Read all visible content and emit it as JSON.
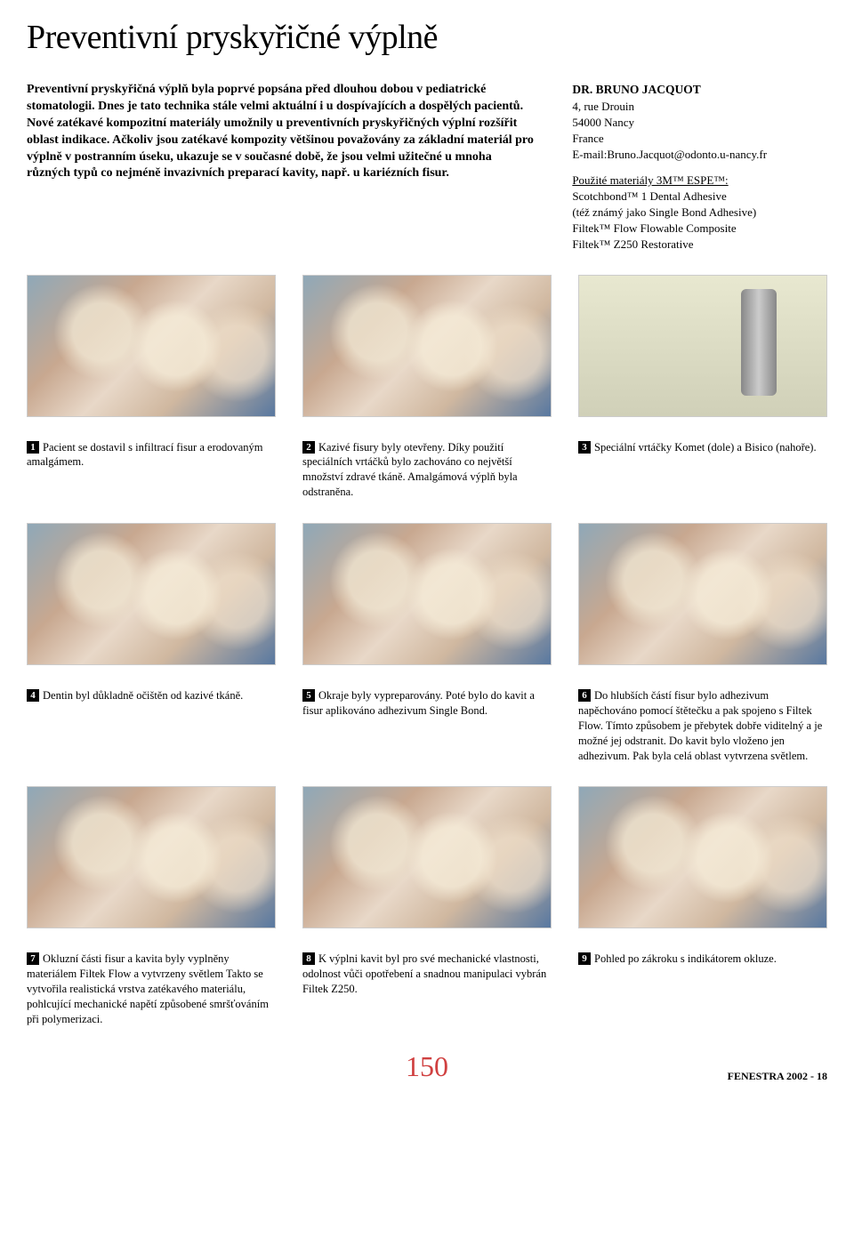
{
  "title": "Preventivní pryskyřičné výplně",
  "intro": "Preventivní pryskyřičná výplň byla poprvé popsána před dlouhou dobou v pediatrické stomatologii. Dnes je tato technika stále velmi aktuální i u dospívajících a dospělých pacientů. Nové zatékavé kompozitní materiály umožnily u preventivních pryskyřičných výplní rozšířit oblast indikace. Ačkoliv jsou zatékavé kompozity většinou považovány za základní materiál pro výplně v postranním úseku, ukazuje se v současné době, že jsou velmi užitečné u mnoha různých typů co nejméně invazivních preparací kavity, např. u kariézních fisur.",
  "author": {
    "name": "DR. BRUNO JACQUOT",
    "addr1": "4, rue Drouin",
    "addr2": "54000 Nancy",
    "addr3": "France",
    "email": "E-mail:Bruno.Jacquot@odonto.u-nancy.fr"
  },
  "materials": {
    "header": "Použité materiály 3M™ ESPE™:",
    "items": [
      "Scotchbond™ 1 Dental Adhesive",
      "(též známý jako Single Bond Adhesive)",
      "Filtek™ Flow Flowable Composite",
      "Filtek™ Z250 Restorative"
    ]
  },
  "captions": [
    {
      "n": "1",
      "text": "Pacient se dostavil s infiltrací fisur a erodovaným amalgámem."
    },
    {
      "n": "2",
      "text": "Kazivé fisury byly otevřeny. Díky použití speciálních vrtáčků bylo zachováno co největší množství zdravé tkáně. Amalgámová výplň byla odstraněna."
    },
    {
      "n": "3",
      "text": "Speciální vrtáčky Komet (dole) a Bisico (nahoře)."
    },
    {
      "n": "4",
      "text": "Dentin byl důkladně očištěn od kazivé tkáně."
    },
    {
      "n": "5",
      "text": "Okraje byly vypreparovány. Poté bylo do kavit a fisur aplikováno adhezivum Single Bond."
    },
    {
      "n": "6",
      "text": "Do hlubších částí fisur bylo adhezivum napěchováno pomocí štětečku a pak spojeno s Filtek Flow. Tímto způsobem je přebytek dobře viditelný a je možné jej odstranit. Do kavit bylo vloženo jen adhezivum. Pak byla celá oblast vytvrzena světlem."
    },
    {
      "n": "7",
      "text": "Okluzní části fisur a kavita byly vyplněny materiálem Filtek Flow a vytvrzeny světlem Takto se vytvořila realistická vrstva zatékavého materiálu, pohlcující mechanické napětí způsobené smršťováním při polymerizaci."
    },
    {
      "n": "8",
      "text": "K výplni kavit byl pro své mechanické vlastnosti, odolnost vůči opotřebení a snadnou manipulaci vybrán Filtek Z250."
    },
    {
      "n": "9",
      "text": "Pohled po zákroku s indikátorem okluze."
    }
  ],
  "page_number": "150",
  "publication": "FENESTRA 2002 - 18"
}
